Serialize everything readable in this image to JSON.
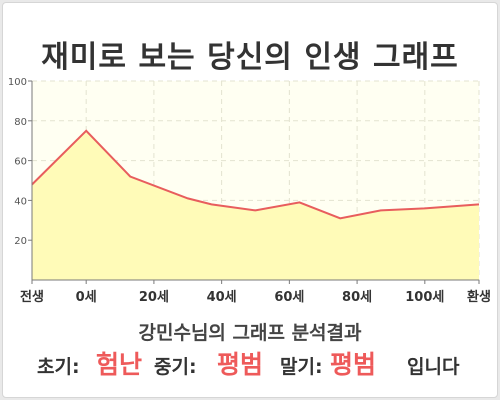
{
  "title": "재미로 보는 당신의 인생 그래프",
  "summary": "강민수님의 그래프 분석결과",
  "result": {
    "early_label": "초기:",
    "early_value": "험난",
    "mid_label": "중기:",
    "mid_value": "평범",
    "late_label": "말기:",
    "late_value": "평범",
    "suffix": "입니다"
  },
  "colors": {
    "line": "#e85d5d",
    "fill": "#fffbb8",
    "plot_bg": "#fffff2",
    "highlight": "#ee5a5a"
  },
  "chart_data": {
    "type": "area",
    "x_tick_labels": [
      "전생",
      "0세",
      "20세",
      "40세",
      "60세",
      "80세",
      "100세",
      "환생"
    ],
    "x_tick_positions": [
      -16,
      0,
      20,
      40,
      60,
      80,
      100,
      116
    ],
    "y_ticks": [
      20,
      40,
      60,
      80,
      100
    ],
    "ylim": [
      0,
      100
    ],
    "xlim": [
      -16,
      116
    ],
    "grid": true,
    "series": [
      {
        "x": [
          -16,
          0,
          13,
          30,
          37,
          50,
          63,
          75,
          87,
          100,
          116
        ],
        "y": [
          48,
          75,
          52,
          41,
          38,
          35,
          39,
          31,
          35,
          36,
          38
        ]
      }
    ]
  }
}
